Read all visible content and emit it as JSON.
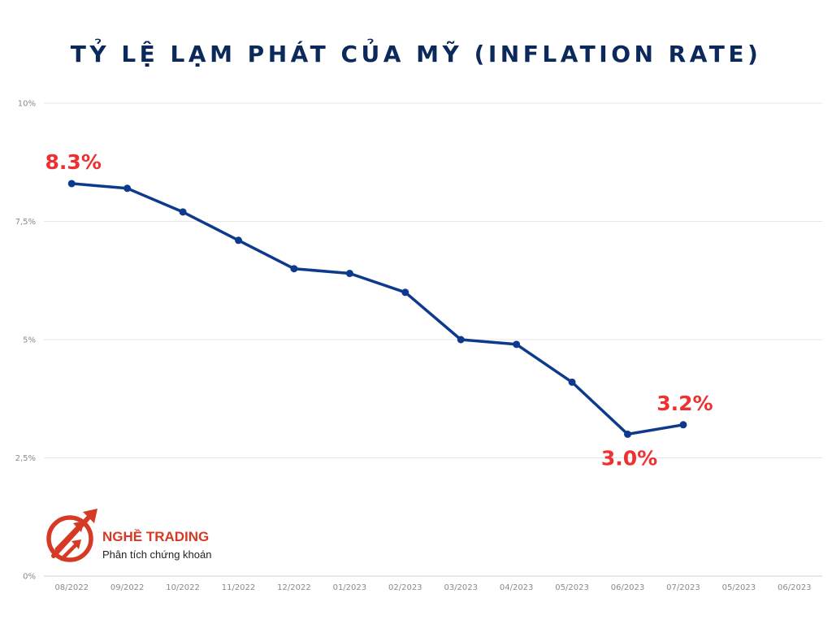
{
  "colors": {
    "title": "#0b2a5b",
    "line": "#0d3a8c",
    "highlight": "#ef3030",
    "grid": "#e6e6e6",
    "tick": "#8a8a8a",
    "brand": "#d63a24"
  },
  "logo": {
    "icon": "growth-arrows-icon",
    "name": "NGHỀ TRADING",
    "tagline": "Phân tích chứng khoán"
  },
  "chart_data": {
    "type": "line",
    "title": "TỶ LỆ LẠM PHÁT CỦA MỸ (INFLATION RATE)",
    "xlabel": "",
    "ylabel": "",
    "categories": [
      "08/2022",
      "09/2022",
      "10/2022",
      "11/2022",
      "12/2022",
      "01/2023",
      "02/2023",
      "03/2023",
      "04/2023",
      "05/2023",
      "06/2023",
      "07/2023",
      "05/2023",
      "06/2023"
    ],
    "series": [
      {
        "values": [
          8.3,
          8.2,
          7.7,
          7.1,
          6.5,
          6.4,
          6.0,
          5.0,
          4.9,
          4.1,
          3.0,
          3.2,
          null,
          null
        ]
      }
    ],
    "ylim": [
      0,
      10
    ],
    "y_ticks": [
      {
        "value": 0,
        "label": "0%"
      },
      {
        "value": 2.5,
        "label": "2,5%"
      },
      {
        "value": 5,
        "label": "5%"
      },
      {
        "value": 7.5,
        "label": "7,5%"
      },
      {
        "value": 10,
        "label": "10%"
      }
    ],
    "annotations": [
      {
        "index": 0,
        "text": "8.3%",
        "placement": "above"
      },
      {
        "index": 10,
        "text": "3.0%",
        "placement": "below"
      },
      {
        "index": 11,
        "text": "3.2%",
        "placement": "above"
      }
    ],
    "grid": true,
    "legend": "none",
    "markers": true
  }
}
